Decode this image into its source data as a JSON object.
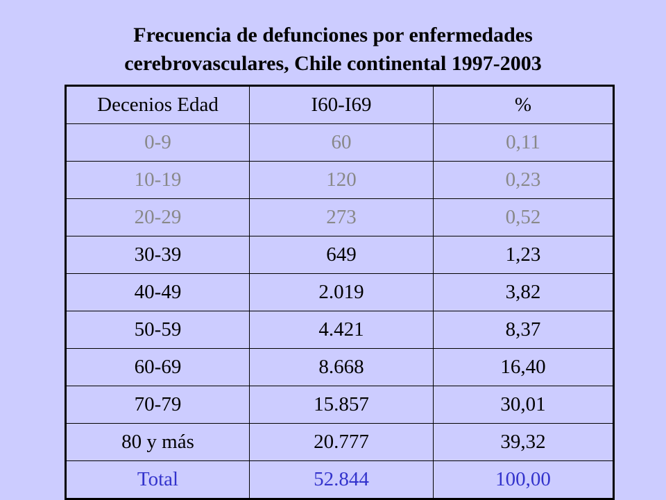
{
  "title": {
    "line1": "Frecuencia de defunciones por enfermedades",
    "line2": "cerebrovasculares, Chile continental 1997-2003"
  },
  "table": {
    "headers": [
      "Decenios Edad",
      "I60-I69",
      "%"
    ],
    "rows": [
      {
        "age": "0-9",
        "count": "60",
        "percent": "0,11"
      },
      {
        "age": "10-19",
        "count": "120",
        "percent": "0,23"
      },
      {
        "age": "20-29",
        "count": "273",
        "percent": "0,52"
      },
      {
        "age": "30-39",
        "count": "649",
        "percent": "1,23"
      },
      {
        "age": "40-49",
        "count": "2.019",
        "percent": "3,82"
      },
      {
        "age": "50-59",
        "count": "4.421",
        "percent": "8,37"
      },
      {
        "age": "60-69",
        "count": "8.668",
        "percent": "16,40"
      },
      {
        "age": "70-79",
        "count": "15.857",
        "percent": "30,01"
      },
      {
        "age": "80 y más",
        "count": "20.777",
        "percent": "39,32"
      }
    ],
    "total": {
      "label": "Total",
      "count": "52.844",
      "percent": "100,00"
    }
  },
  "colors": {
    "background": "#ccccff",
    "low_rows_text": "#888888",
    "normal_text": "#000000",
    "total_text": "#3333cc"
  }
}
